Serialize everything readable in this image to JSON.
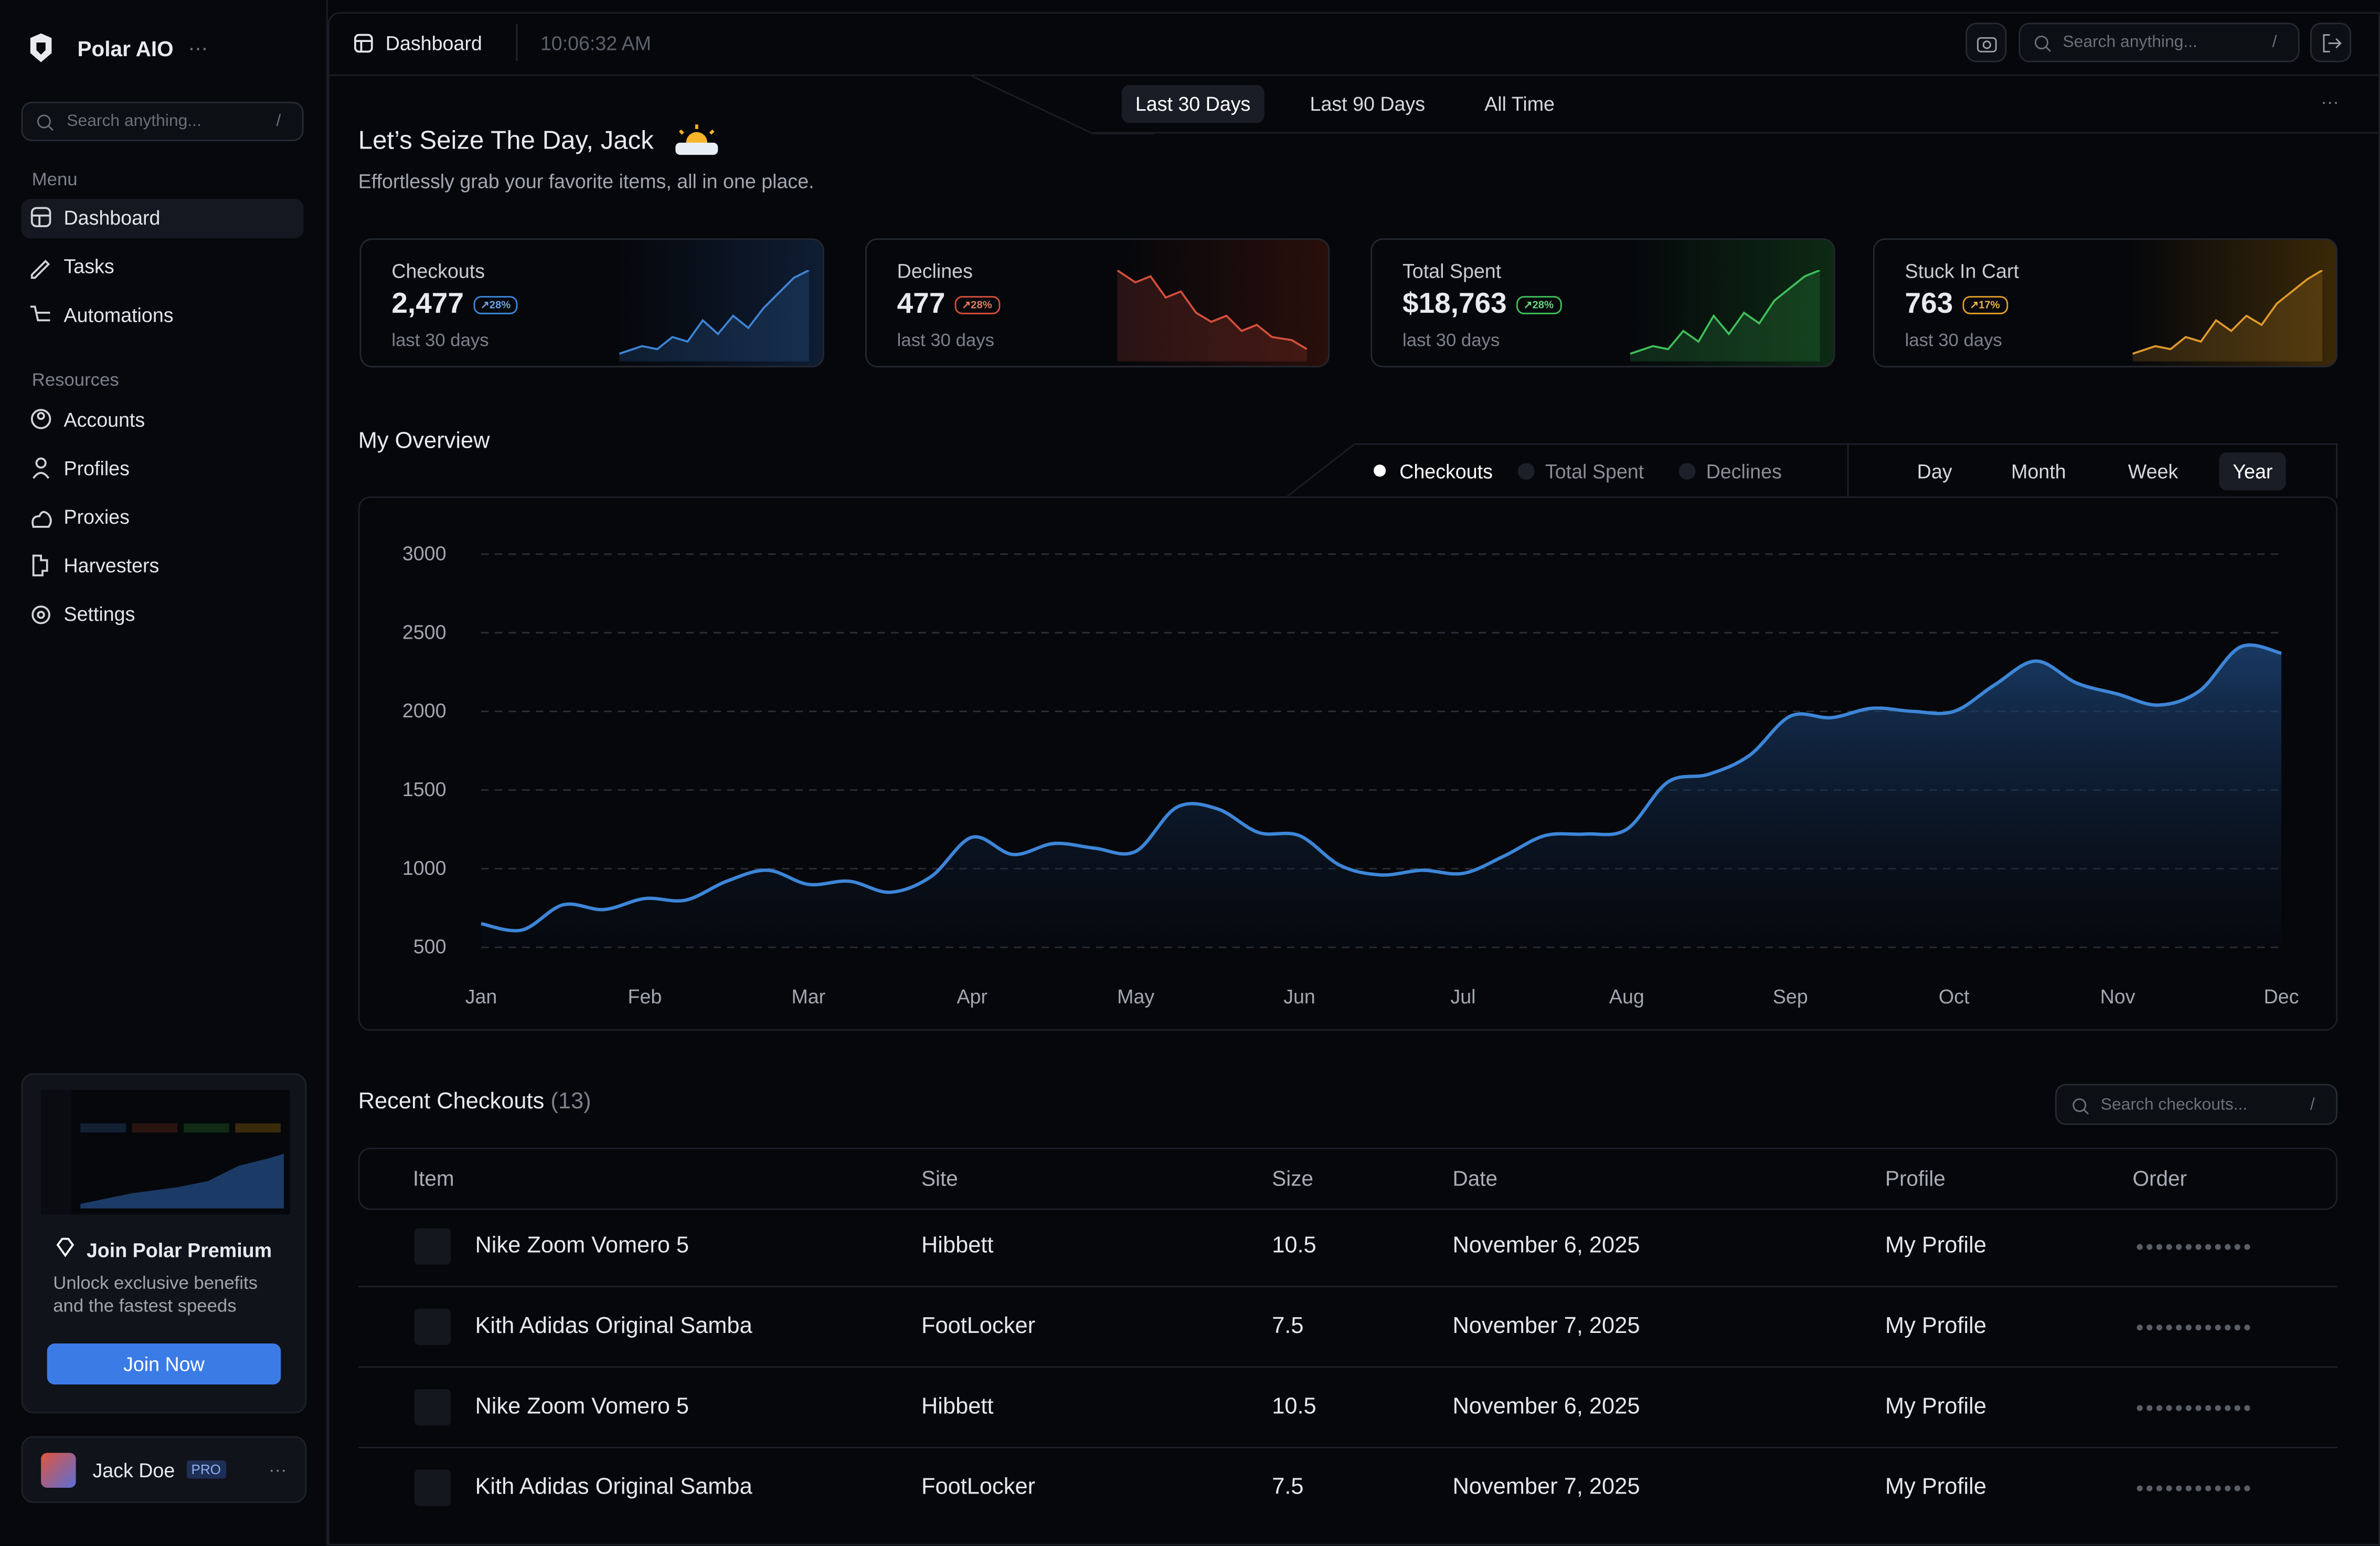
{
  "sidebar": {
    "brand": "Polar AIO",
    "search": "Search anything...",
    "search_key": "/",
    "menu_title": "Menu",
    "menu": [
      "Dashboard",
      "Tasks",
      "Automations"
    ],
    "resources_title": "Resources",
    "resources": [
      "Accounts",
      "Profiles",
      "Proxies",
      "Harvesters",
      "Settings"
    ],
    "promo": {
      "title": "Join Polar Premium",
      "text": "Unlock exclusive benefits and the fastest speeds",
      "button": "Join Now"
    },
    "user": {
      "name": "Jack Doe",
      "badge": "PRO"
    }
  },
  "topbar": {
    "page": "Dashboard",
    "time": "10:06:32 AM",
    "search": "Search anything...",
    "search_key": "/"
  },
  "ranges": [
    "Last 30 Days",
    "Last 90 Days",
    "All Time"
  ],
  "greeting": {
    "title": "Let’s Seize The Day, Jack",
    "subtitle": "Effortlessly grab your favorite items, all in one place."
  },
  "stats": [
    {
      "label": "Checkouts",
      "value": "2,477",
      "change": "28%",
      "period": "last 30 days"
    },
    {
      "label": "Declines",
      "value": "477",
      "change": "28%",
      "period": "last 30 days"
    },
    {
      "label": "Total Spent",
      "value": "$18,763",
      "change": "28%",
      "period": "last 30 days"
    },
    {
      "label": "Stuck In Cart",
      "value": "763",
      "change": "17%",
      "period": "last 30 days"
    }
  ],
  "chart_data": {
    "type": "line",
    "title": "My Overview",
    "toggles": [
      "Checkouts",
      "Total Spent",
      "Declines"
    ],
    "periods": [
      "Day",
      "Month",
      "Week",
      "Year"
    ],
    "categories": [
      "Jan",
      null,
      null,
      null,
      "Feb",
      null,
      null,
      null,
      "Mar",
      null,
      null,
      null,
      "Apr",
      null,
      null,
      null,
      "May",
      null,
      null,
      null,
      "Jun",
      null,
      null,
      null,
      "Jul",
      null,
      null,
      null,
      "Aug",
      null,
      null,
      null,
      "Sep",
      null,
      null,
      null,
      "Oct",
      null,
      null,
      null,
      "Nov",
      null,
      null,
      null,
      "Dec"
    ],
    "series": [
      {
        "name": "Checkouts",
        "color": "#3d86d8",
        "values": [
          650,
          610,
          770,
          740,
          810,
          800,
          920,
          990,
          900,
          920,
          850,
          950,
          1200,
          1090,
          1160,
          1130,
          1110,
          1390,
          1380,
          1230,
          1210,
          1020,
          960,
          990,
          970,
          1080,
          1210,
          1220,
          1250,
          1550,
          1600,
          1720,
          1970,
          1960,
          2020,
          2000,
          2000,
          2170,
          2320,
          2180,
          2110,
          2040,
          2130,
          2410,
          2370
        ]
      }
    ],
    "ylim": [
      500,
      3000
    ],
    "yticks": [
      500,
      1000,
      1500,
      2000,
      2500,
      3000
    ],
    "grid": true
  },
  "table": {
    "title": "Recent Checkouts",
    "count": "(13)",
    "search": "Search checkouts...",
    "search_key": "/",
    "columns": [
      "Item",
      "Site",
      "Size",
      "Date",
      "Profile",
      "Order"
    ],
    "rows": [
      [
        "Nike Zoom Vomero 5",
        "Hibbett",
        "10.5",
        "November 6, 2025",
        "My Profile"
      ],
      [
        "Kith Adidas Original Samba",
        "FootLocker",
        "7.5",
        "November 7, 2025",
        "My Profile"
      ],
      [
        "Nike Zoom Vomero 5",
        "Hibbett",
        "10.5",
        "November 6, 2025",
        "My Profile"
      ],
      [
        "Kith Adidas Original Samba",
        "FootLocker",
        "7.5",
        "November 7, 2025",
        "My Profile"
      ]
    ]
  }
}
